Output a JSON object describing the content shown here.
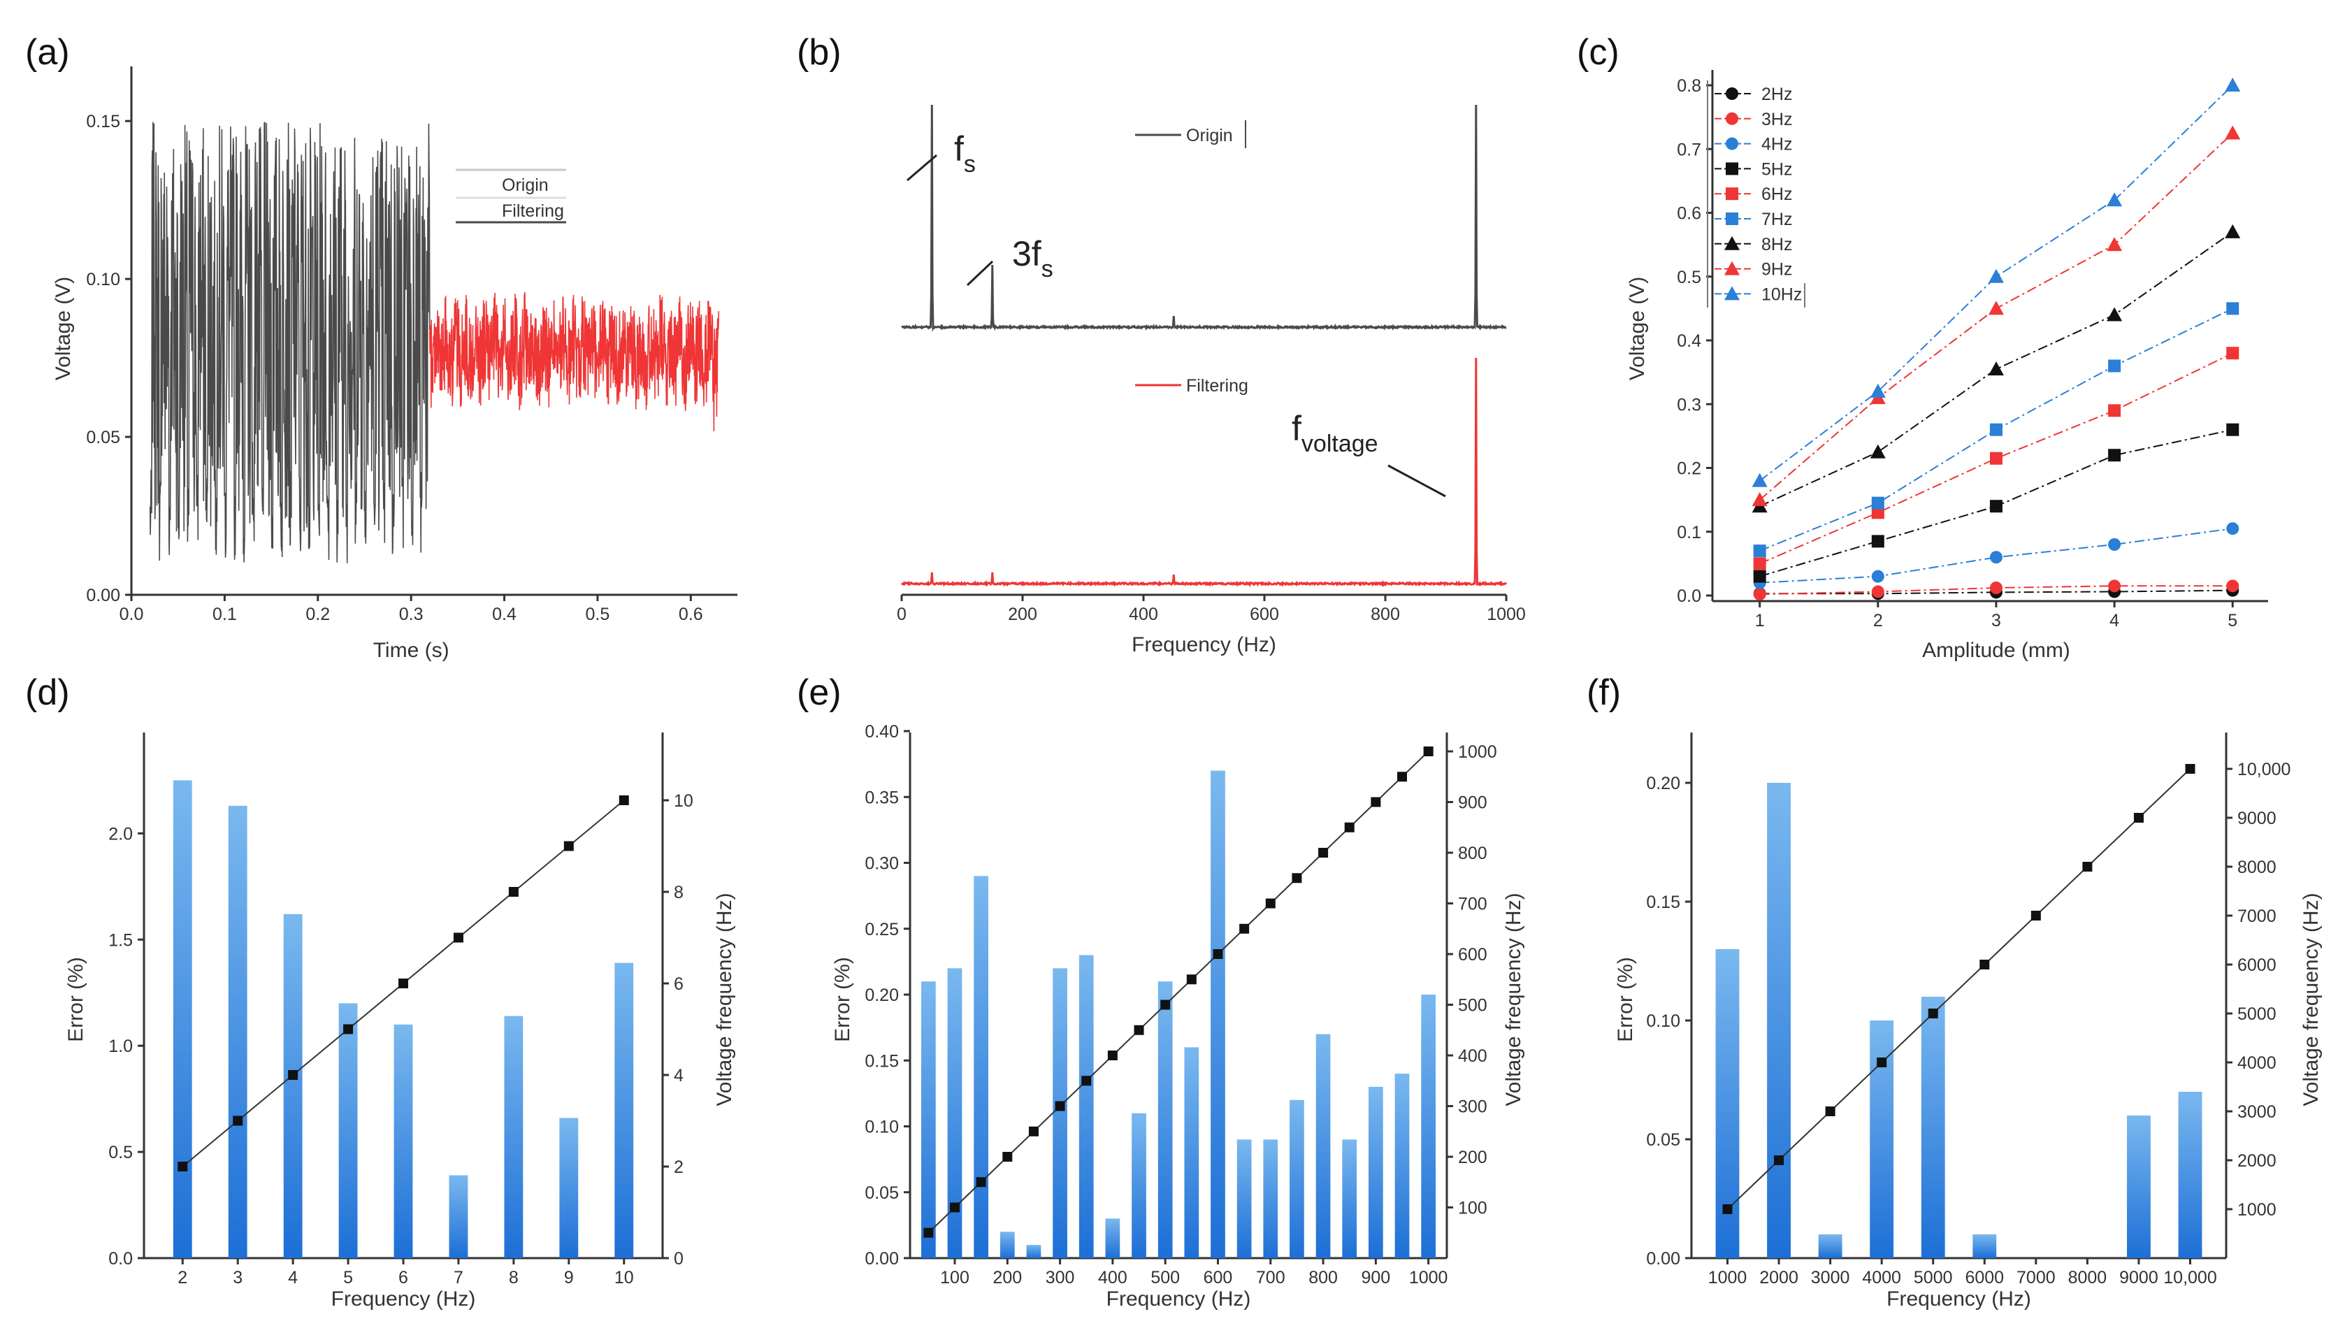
{
  "colors": {
    "dark": "#4a4a4a",
    "black": "#111111",
    "red": "#ef3535",
    "blue": "#2b7fd6",
    "bar_top": "#79b6ee",
    "bar_bottom": "#1f70d6",
    "error_axis": "#3a8ad8"
  },
  "chart_data": [
    {
      "id": "a",
      "panel_label": "(a)",
      "type": "line",
      "title": "",
      "xlabel": "Time (s)",
      "ylabel": "Voltage (V)",
      "xlim": [
        0.0,
        0.65
      ],
      "ylim": [
        0.0,
        0.16
      ],
      "xticks": [
        "0.0",
        "0.1",
        "0.2",
        "0.3",
        "0.4",
        "0.5",
        "0.6"
      ],
      "yticks": [
        "0.00",
        "0.05",
        "0.10",
        "0.15"
      ],
      "series": [
        {
          "name": "Origin",
          "x_range": [
            0.02,
            0.32
          ],
          "min": 0.005,
          "max": 0.16
        },
        {
          "name": "Filtering",
          "x_range": [
            0.32,
            0.63
          ],
          "min": 0.05,
          "max": 0.1
        }
      ],
      "legend": [
        "Origin",
        "Filtering"
      ],
      "legend_position": "top-right"
    },
    {
      "id": "b",
      "panel_label": "(b)",
      "type": "line",
      "title": "",
      "xlabel": "Frequency (Hz)",
      "xlim": [
        0,
        1000
      ],
      "xticks": [
        "0",
        "200",
        "400",
        "600",
        "800",
        "1000"
      ],
      "series": [
        {
          "name": "Origin",
          "peaks": [
            {
              "x": 50,
              "h": 1.0
            },
            {
              "x": 150,
              "h": 0.28
            },
            {
              "x": 450,
              "h": 0.05
            },
            {
              "x": 950,
              "h": 1.0
            }
          ]
        },
        {
          "name": "Filtering",
          "peaks": [
            {
              "x": 50,
              "h": 0.05
            },
            {
              "x": 150,
              "h": 0.05
            },
            {
              "x": 450,
              "h": 0.04
            },
            {
              "x": 950,
              "h": 1.0
            }
          ]
        }
      ],
      "legend": [
        "Origin",
        "Filtering"
      ],
      "annotations": [
        {
          "text": "f",
          "sub": "s"
        },
        {
          "text": "3f",
          "sub": "s"
        },
        {
          "text": "f",
          "sub": "voltage"
        }
      ]
    },
    {
      "id": "c",
      "panel_label": "(c)",
      "type": "line",
      "title": "",
      "xlabel": "Amplitude (mm)",
      "ylabel": "Voltage (V)",
      "xlim": [
        0.6,
        5.3
      ],
      "ylim": [
        0.0,
        0.8
      ],
      "xticks": [
        "1",
        "2",
        "3",
        "4",
        "5"
      ],
      "yticks": [
        "0.0",
        "0.1",
        "0.2",
        "0.3",
        "0.4",
        "0.5",
        "0.6",
        "0.7",
        "0.8"
      ],
      "x": [
        1,
        2,
        3,
        4,
        5
      ],
      "series": [
        {
          "name": "2Hz",
          "marker": "circle",
          "color": "#111111",
          "values": [
            0.003,
            0.003,
            0.005,
            0.006,
            0.008
          ]
        },
        {
          "name": "3Hz",
          "marker": "circle",
          "color": "#ef3535",
          "values": [
            0.002,
            0.006,
            0.012,
            0.015,
            0.015
          ]
        },
        {
          "name": "4Hz",
          "marker": "circle",
          "color": "#2b7fd6",
          "values": [
            0.02,
            0.03,
            0.06,
            0.08,
            0.105
          ]
        },
        {
          "name": "5Hz",
          "marker": "square",
          "color": "#111111",
          "values": [
            0.03,
            0.085,
            0.14,
            0.22,
            0.26
          ]
        },
        {
          "name": "6Hz",
          "marker": "square",
          "color": "#ef3535",
          "values": [
            0.05,
            0.13,
            0.215,
            0.29,
            0.38
          ]
        },
        {
          "name": "7Hz",
          "marker": "square",
          "color": "#2b7fd6",
          "values": [
            0.07,
            0.145,
            0.26,
            0.36,
            0.45
          ]
        },
        {
          "name": "8Hz",
          "marker": "triangle",
          "color": "#111111",
          "values": [
            0.14,
            0.225,
            0.355,
            0.44,
            0.57
          ]
        },
        {
          "name": "9Hz",
          "marker": "triangle",
          "color": "#ef3535",
          "values": [
            0.15,
            0.31,
            0.45,
            0.55,
            0.725
          ]
        },
        {
          "name": "10Hz",
          "marker": "triangle",
          "color": "#2b7fd6",
          "values": [
            0.18,
            0.32,
            0.5,
            0.62,
            0.8
          ]
        }
      ],
      "legend_position": "top-left"
    },
    {
      "id": "d",
      "panel_label": "(d)",
      "type": "bar",
      "title": "",
      "xlabel": "Frequency (Hz)",
      "ylabel": "Error (%)",
      "y2label": "Voltage frequency (Hz)",
      "categories": [
        "2",
        "3",
        "4",
        "5",
        "6",
        "7",
        "8",
        "9",
        "10"
      ],
      "ylim": [
        0,
        2.35
      ],
      "yticks": [
        "0.0",
        "0.5",
        "1.0",
        "1.5",
        "2.0"
      ],
      "y2lim": [
        0,
        10.9
      ],
      "y2ticks": [
        "0",
        "2",
        "4",
        "6",
        "8",
        "10"
      ],
      "values": [
        2.25,
        2.13,
        1.62,
        1.2,
        1.1,
        0.39,
        1.14,
        0.66,
        1.39
      ],
      "line_values": [
        2,
        3,
        4,
        5,
        6,
        7,
        8,
        9,
        10
      ]
    },
    {
      "id": "e",
      "panel_label": "(e)",
      "type": "bar",
      "title": "",
      "xlabel": "Frequency (Hz)",
      "ylabel": "Error (%)",
      "y2label": "Voltage frequency (Hz)",
      "categories": [
        "50",
        "100",
        "150",
        "200",
        "250",
        "300",
        "350",
        "400",
        "450",
        "500",
        "550",
        "600",
        "650",
        "700",
        "750",
        "800",
        "850",
        "900",
        "950",
        "1000"
      ],
      "xticks": [
        "100",
        "200",
        "300",
        "400",
        "500",
        "600",
        "700",
        "800",
        "900",
        "1000"
      ],
      "ylim": [
        0,
        0.4
      ],
      "yticks": [
        "0.00",
        "0.05",
        "0.10",
        "0.15",
        "0.20",
        "0.25",
        "0.30",
        "0.35",
        "0.40"
      ],
      "y2lim": [
        0,
        1040
      ],
      "y2ticks": [
        "100",
        "200",
        "300",
        "400",
        "500",
        "600",
        "700",
        "800",
        "900",
        "1000"
      ],
      "values": [
        0.21,
        0.22,
        0.29,
        0.02,
        0.01,
        0.22,
        0.23,
        0.03,
        0.11,
        0.21,
        0.16,
        0.37,
        0.09,
        0.09,
        0.12,
        0.17,
        0.09,
        0.13,
        0.14,
        0.2
      ],
      "line_values": [
        50,
        100,
        150,
        200,
        250,
        300,
        350,
        400,
        450,
        500,
        550,
        600,
        650,
        700,
        750,
        800,
        850,
        900,
        950,
        1000
      ]
    },
    {
      "id": "f",
      "panel_label": "(f)",
      "type": "bar",
      "title": "",
      "xlabel": "Frequency (Hz)",
      "ylabel": "Error (%)",
      "y2label": "Voltage frequency (Hz)",
      "categories": [
        "1000",
        "2000",
        "3000",
        "4000",
        "5000",
        "6000",
        "7000",
        "8000",
        "9000",
        "10,000"
      ],
      "ylim": [
        0,
        0.21
      ],
      "yticks": [
        "0.00",
        "0.05",
        "0.10",
        "0.15",
        "0.20"
      ],
      "y2lim": [
        0,
        10200
      ],
      "y2ticks": [
        "1000",
        "2000",
        "3000",
        "4000",
        "5000",
        "6000",
        "7000",
        "8000",
        "9000",
        "10,000"
      ],
      "values": [
        0.13,
        0.2,
        0.01,
        0.1,
        0.11,
        0.01,
        0,
        0,
        0.06,
        0.07
      ],
      "line_values": [
        1000,
        2000,
        3000,
        4000,
        5000,
        6000,
        7000,
        8000,
        9000,
        10000
      ]
    }
  ]
}
